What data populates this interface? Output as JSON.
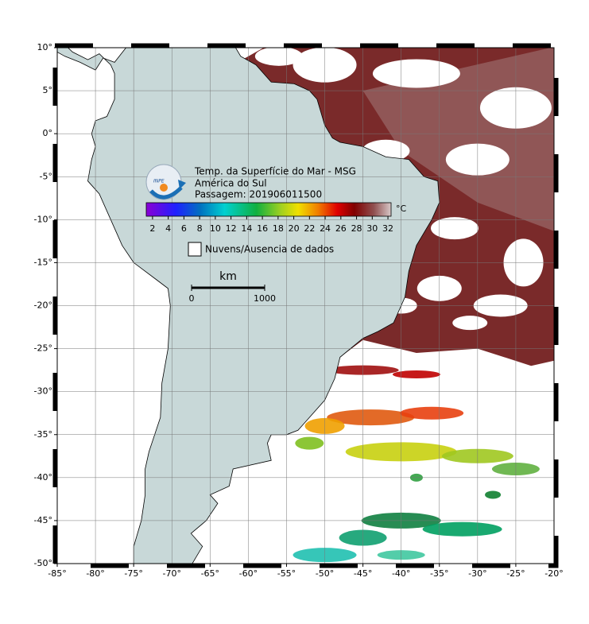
{
  "map": {
    "title_lines": [
      "Temp. da Superfície do Mar - MSG",
      "América do Sul",
      "Passagem: 201906011500"
    ],
    "logo": "INPE",
    "lonlim": [
      -85,
      -20
    ],
    "latlim": [
      -50,
      10
    ],
    "lon_ticks": [
      {
        "value": -85,
        "label": "-85°"
      },
      {
        "value": -80,
        "label": "-80°"
      },
      {
        "value": -75,
        "label": "-75°"
      },
      {
        "value": -70,
        "label": "-70°"
      },
      {
        "value": -65,
        "label": "-65°"
      },
      {
        "value": -60,
        "label": "-60°"
      },
      {
        "value": -55,
        "label": "-55°"
      },
      {
        "value": -50,
        "label": "-50°"
      },
      {
        "value": -45,
        "label": "-45°"
      },
      {
        "value": -40,
        "label": "-40°"
      },
      {
        "value": -35,
        "label": "-35°"
      },
      {
        "value": -30,
        "label": "-30°"
      },
      {
        "value": -25,
        "label": "-25°"
      },
      {
        "value": -20,
        "label": "-20°"
      }
    ],
    "lat_ticks": [
      {
        "value": 10,
        "label": "10°"
      },
      {
        "value": 5,
        "label": "5°"
      },
      {
        "value": 0,
        "label": "0°"
      },
      {
        "value": -5,
        "label": "-5°"
      },
      {
        "value": -10,
        "label": "-10°"
      },
      {
        "value": -15,
        "label": "-15°"
      },
      {
        "value": -20,
        "label": "-20°"
      },
      {
        "value": -25,
        "label": "-25°"
      },
      {
        "value": -30,
        "label": "-30°"
      },
      {
        "value": -35,
        "label": "-35°"
      },
      {
        "value": -40,
        "label": "-40°"
      },
      {
        "value": -45,
        "label": "-45°"
      },
      {
        "value": -50,
        "label": "-50°"
      }
    ],
    "grid": true,
    "colorbar": {
      "unit": "°C",
      "lim": [
        1.2,
        32.4
      ],
      "ticks": [
        2,
        4,
        6,
        8,
        10,
        12,
        14,
        16,
        18,
        20,
        22,
        24,
        26,
        28,
        30,
        32
      ]
    },
    "legend_box": "Nuvens/Ausencia de dados",
    "scale_bar": {
      "unit": "km",
      "ticks": [
        0,
        1000
      ]
    }
  }
}
